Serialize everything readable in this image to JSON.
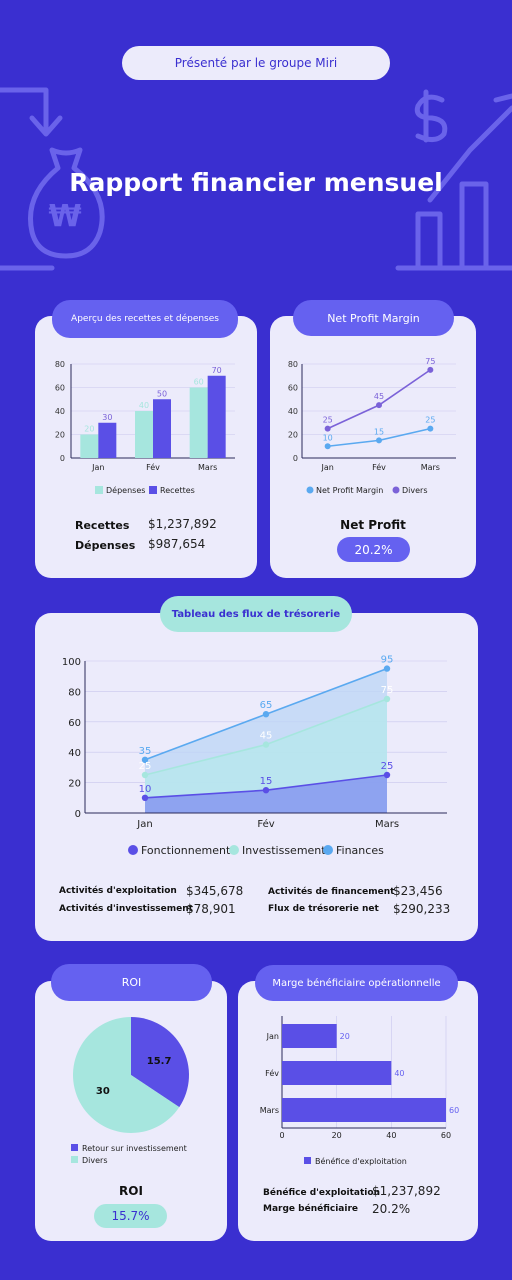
{
  "header": {
    "presented_by": "Présenté par le groupe Miri",
    "title": "Rapport financier mensuel"
  },
  "colors": {
    "background": "#3a2fd0",
    "card": "#ecebfb",
    "violet": "#6561f0",
    "mint": "#a6e6de",
    "sky": "#5aa9f0",
    "purple": "#7b62d8"
  },
  "overview": {
    "title": "Aperçu des recettes et dépenses",
    "stats": [
      {
        "label": "Recettes",
        "value": "$1,237,892"
      },
      {
        "label": "Dépenses",
        "value": "$987,654"
      }
    ]
  },
  "npm": {
    "title": "Net Profit Margin",
    "stat_label": "Net Profit",
    "stat_value": "20.2%"
  },
  "cashflow": {
    "title": "Tableau des flux de trésorerie",
    "stats": [
      {
        "label": "Activités d'exploitation",
        "value": "$345,678"
      },
      {
        "label": "Activités d'investissement",
        "value": "$78,901"
      },
      {
        "label": "Activités de financement",
        "value": "$23,456"
      },
      {
        "label": "Flux de trésorerie net",
        "value": "$290,233"
      }
    ]
  },
  "roi": {
    "title": "ROI",
    "stat_label": "ROI",
    "stat_value": "15.7%"
  },
  "margin": {
    "title": "Marge bénéficiaire opérationnelle",
    "stats": [
      {
        "label": "Bénéfice d'exploitation",
        "value": "$1,237,892"
      },
      {
        "label": "Marge bénéficiaire",
        "value": "20.2%"
      }
    ]
  },
  "chart_data": [
    {
      "type": "bar",
      "categories": [
        "Jan",
        "Fév",
        "Mars"
      ],
      "series": [
        {
          "name": "Dépenses",
          "values": [
            20,
            40,
            60
          ],
          "color": "#a6e6de"
        },
        {
          "name": "Recettes",
          "values": [
            30,
            50,
            70
          ],
          "color": "#5a4fe6"
        }
      ],
      "yticks": [
        0,
        20,
        40,
        60,
        80
      ],
      "ylim": [
        0,
        80
      ],
      "legend": "bottom"
    },
    {
      "type": "line",
      "categories": [
        "Jan",
        "Fév",
        "Mars"
      ],
      "series": [
        {
          "name": "Net Profit Margin",
          "values": [
            10,
            15,
            25
          ],
          "color": "#5aa9f0"
        },
        {
          "name": "Divers",
          "values": [
            25,
            45,
            75
          ],
          "color": "#7b62d8"
        }
      ],
      "yticks": [
        0,
        20,
        40,
        60,
        80
      ],
      "ylim": [
        0,
        80
      ],
      "legend": "bottom"
    },
    {
      "type": "area",
      "categories": [
        "Jan",
        "Fév",
        "Mars"
      ],
      "series": [
        {
          "name": "Fonctionnement",
          "values": [
            10,
            15,
            25
          ],
          "color": "#5a4fe6"
        },
        {
          "name": "Investissements",
          "values": [
            25,
            45,
            75
          ],
          "color": "#a6e6de"
        },
        {
          "name": "Finances",
          "values": [
            35,
            65,
            95
          ],
          "color": "#5aa9f0"
        }
      ],
      "yticks": [
        0,
        20,
        40,
        60,
        80,
        100
      ],
      "ylim": [
        0,
        100
      ],
      "legend": "bottom"
    },
    {
      "type": "pie",
      "slices": [
        {
          "name": "Retour sur investissement",
          "value": 15.7,
          "label": "15.7",
          "color": "#5a4fe6"
        },
        {
          "name": "Divers",
          "value": 30,
          "label": "30",
          "color": "#a6e6de"
        }
      ],
      "legend": "bottom"
    },
    {
      "type": "bar",
      "orientation": "horizontal",
      "categories": [
        "Jan",
        "Fév",
        "Mars"
      ],
      "series": [
        {
          "name": "Bénéfice d'exploitation",
          "values": [
            20,
            40,
            60
          ],
          "color": "#5a4fe6"
        }
      ],
      "xticks": [
        0,
        20,
        40,
        60
      ],
      "xlim": [
        0,
        60
      ],
      "legend": "bottom"
    }
  ]
}
